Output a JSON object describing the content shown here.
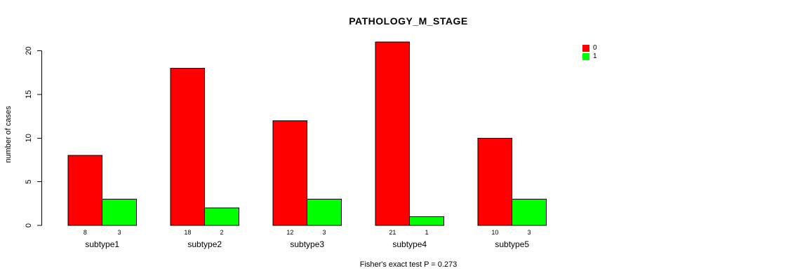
{
  "title": "PATHOLOGY_M_STAGE",
  "chart_data": {
    "type": "bar",
    "title": "PATHOLOGY_M_STAGE",
    "categories": [
      "subtype1",
      "subtype2",
      "subtype3",
      "subtype4",
      "subtype5"
    ],
    "series": [
      {
        "name": "0",
        "color": "#FF0000",
        "values": [
          8,
          18,
          12,
          21,
          10
        ]
      },
      {
        "name": "1",
        "color": "#00FF00",
        "values": [
          3,
          2,
          3,
          1,
          3
        ]
      }
    ],
    "xlabel": "",
    "ylabel": "number of cases",
    "ylim": [
      0,
      20
    ],
    "yticks": [
      0,
      5,
      10,
      15,
      20
    ],
    "bar_value_labels_shown": true,
    "grid": false,
    "legend_position": "top-right",
    "annotation": "Fisher's exact test P = 0.273"
  }
}
